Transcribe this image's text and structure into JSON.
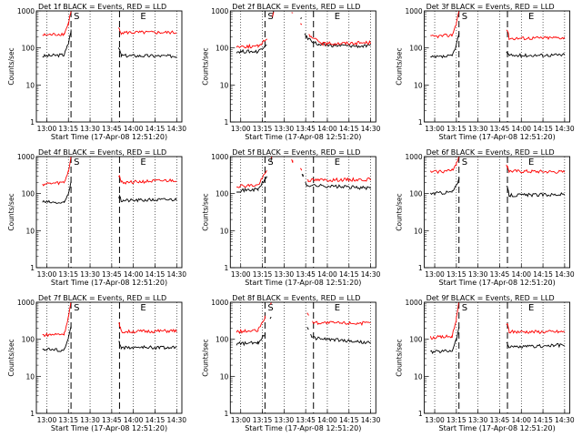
{
  "figure": {
    "ylabel": "Counts/sec",
    "xlabel": "Start Time (17-Apr-08 12:51:20)",
    "start_marker": "S",
    "end_marker": "E"
  },
  "colors": {
    "events": "#000000",
    "lld": "#ff0000"
  },
  "chart_data": [
    {
      "type": "line",
      "title": "Det 1f BLACK = Events, RED = LLD",
      "x_ticks": [
        "13:00",
        "13:15",
        "13:30",
        "13:45",
        "14:00",
        "14:15",
        "14:30"
      ],
      "y_scale": "log",
      "y_ticks": [
        "1",
        "10",
        "100",
        "1000"
      ],
      "ylim": [
        1,
        1000
      ],
      "series": [
        {
          "color": "#000000",
          "points": [
            [
              12.95,
              60
            ],
            [
              13.2,
              65
            ],
            [
              13.25,
              130
            ],
            [
              13.28,
              300
            ],
            [
              13.84,
              90
            ],
            [
              13.86,
              62
            ],
            [
              14.5,
              60
            ]
          ]
        },
        {
          "color": "#ff0000",
          "points": [
            [
              12.95,
              220
            ],
            [
              13.2,
              240
            ],
            [
              13.25,
              450
            ],
            [
              13.28,
              1000
            ],
            [
              13.84,
              320
            ],
            [
              13.86,
              260
            ],
            [
              14.5,
              260
            ]
          ]
        }
      ]
    },
    {
      "type": "line",
      "title": "Det 2f BLACK = Events, RED = LLD",
      "x_ticks": [
        "13:00",
        "13:15",
        "13:30",
        "13:45",
        "14:00",
        "14:15",
        "14:30"
      ],
      "y_scale": "log",
      "y_ticks": [
        "1",
        "10",
        "100",
        "1000"
      ],
      "ylim": [
        1,
        1000
      ],
      "series": [
        {
          "color": "#000000",
          "points": [
            [
              12.95,
              80
            ],
            [
              13.2,
              80
            ],
            [
              13.3,
              130
            ],
            [
              13.38,
              1000
            ],
            [
              13.7,
              600
            ],
            [
              13.75,
              200
            ],
            [
              13.9,
              120
            ],
            [
              14.5,
              110
            ]
          ]
        },
        {
          "color": "#ff0000",
          "points": [
            [
              12.95,
              110
            ],
            [
              13.2,
              110
            ],
            [
              13.3,
              180
            ],
            [
              13.38,
              1000
            ],
            [
              13.6,
              900
            ],
            [
              13.7,
              450
            ],
            [
              13.8,
              200
            ],
            [
              13.95,
              130
            ],
            [
              14.5,
              140
            ]
          ]
        }
      ]
    },
    {
      "type": "line",
      "title": "Det 3f BLACK = Events, RED = LLD",
      "x_ticks": [
        "13:00",
        "13:15",
        "13:30",
        "13:45",
        "14:00",
        "14:15",
        "14:30"
      ],
      "y_scale": "log",
      "y_ticks": [
        "1",
        "10",
        "100",
        "1000"
      ],
      "ylim": [
        1,
        1000
      ],
      "series": [
        {
          "color": "#000000",
          "points": [
            [
              12.95,
              55
            ],
            [
              13.2,
              60
            ],
            [
              13.25,
              120
            ],
            [
              13.28,
              250
            ],
            [
              13.84,
              75
            ],
            [
              13.86,
              62
            ],
            [
              14.5,
              65
            ]
          ]
        },
        {
          "color": "#ff0000",
          "points": [
            [
              12.95,
              200
            ],
            [
              13.2,
              220
            ],
            [
              13.25,
              450
            ],
            [
              13.28,
              1000
            ],
            [
              13.84,
              300
            ],
            [
              13.86,
              180
            ],
            [
              14.5,
              190
            ]
          ]
        }
      ]
    },
    {
      "type": "line",
      "title": "Det 4f BLACK = Events, RED = LLD",
      "x_ticks": [
        "13:00",
        "13:15",
        "13:30",
        "13:45",
        "14:00",
        "14:15",
        "14:30"
      ],
      "y_scale": "log",
      "y_ticks": [
        "1",
        "10",
        "100",
        "1000"
      ],
      "ylim": [
        1,
        1000
      ],
      "series": [
        {
          "color": "#000000",
          "points": [
            [
              12.95,
              60
            ],
            [
              13.2,
              55
            ],
            [
              13.25,
              100
            ],
            [
              13.28,
              220
            ],
            [
              13.84,
              80
            ],
            [
              13.86,
              65
            ],
            [
              14.5,
              70
            ]
          ]
        },
        {
          "color": "#ff0000",
          "points": [
            [
              12.95,
              180
            ],
            [
              13.2,
              200
            ],
            [
              13.25,
              400
            ],
            [
              13.28,
              1000
            ],
            [
              13.84,
              300
            ],
            [
              13.86,
              200
            ],
            [
              14.5,
              230
            ]
          ]
        }
      ]
    },
    {
      "type": "line",
      "title": "Det 5f BLACK = Events, RED = LLD",
      "x_ticks": [
        "13:00",
        "13:15",
        "13:30",
        "13:45",
        "14:00",
        "14:15",
        "14:30"
      ],
      "y_scale": "log",
      "y_ticks": [
        "1",
        "10",
        "100",
        "1000"
      ],
      "ylim": [
        1,
        1000
      ],
      "series": [
        {
          "color": "#000000",
          "points": [
            [
              12.95,
              120
            ],
            [
              13.2,
              130
            ],
            [
              13.3,
              280
            ],
            [
              13.36,
              1000
            ],
            [
              13.72,
              300
            ],
            [
              13.76,
              170
            ],
            [
              14.5,
              140
            ]
          ]
        },
        {
          "color": "#ff0000",
          "points": [
            [
              12.95,
              160
            ],
            [
              13.2,
              170
            ],
            [
              13.3,
              400
            ],
            [
              13.36,
              1000
            ],
            [
              13.6,
              750
            ],
            [
              13.7,
              450
            ],
            [
              13.78,
              230
            ],
            [
              14.5,
              240
            ]
          ]
        }
      ]
    },
    {
      "type": "line",
      "title": "Det 6f BLACK = Events, RED = LLD",
      "x_ticks": [
        "13:00",
        "13:15",
        "13:30",
        "13:45",
        "14:00",
        "14:15",
        "14:30"
      ],
      "y_scale": "log",
      "y_ticks": [
        "1",
        "10",
        "100",
        "1000"
      ],
      "ylim": [
        1,
        1000
      ],
      "series": [
        {
          "color": "#000000",
          "points": [
            [
              12.95,
              100
            ],
            [
              13.2,
              110
            ],
            [
              13.25,
              160
            ],
            [
              13.28,
              260
            ],
            [
              13.84,
              140
            ],
            [
              13.86,
              90
            ],
            [
              14.5,
              95
            ]
          ]
        },
        {
          "color": "#ff0000",
          "points": [
            [
              12.95,
              380
            ],
            [
              13.2,
              420
            ],
            [
              13.25,
              650
            ],
            [
              13.28,
              1000
            ],
            [
              13.84,
              550
            ],
            [
              13.86,
              400
            ],
            [
              14.5,
              380
            ]
          ]
        }
      ]
    },
    {
      "type": "line",
      "title": "Det 7f BLACK = Events, RED = LLD",
      "x_ticks": [
        "13:00",
        "13:15",
        "13:30",
        "13:45",
        "14:00",
        "14:15",
        "14:30"
      ],
      "y_scale": "log",
      "y_ticks": [
        "1",
        "10",
        "100",
        "1000"
      ],
      "ylim": [
        1,
        1000
      ],
      "series": [
        {
          "color": "#000000",
          "points": [
            [
              12.95,
              55
            ],
            [
              13.2,
              50
            ],
            [
              13.25,
              110
            ],
            [
              13.28,
              220
            ],
            [
              13.84,
              80
            ],
            [
              13.86,
              60
            ],
            [
              14.5,
              60
            ]
          ]
        },
        {
          "color": "#ff0000",
          "points": [
            [
              12.95,
              130
            ],
            [
              13.2,
              140
            ],
            [
              13.25,
              400
            ],
            [
              13.28,
              1000
            ],
            [
              13.84,
              250
            ],
            [
              13.86,
              160
            ],
            [
              14.5,
              170
            ]
          ]
        }
      ]
    },
    {
      "type": "line",
      "title": "Det 8f BLACK = Events, RED = LLD",
      "x_ticks": [
        "13:00",
        "13:15",
        "13:30",
        "13:45",
        "14:00",
        "14:15",
        "14:30"
      ],
      "y_scale": "log",
      "y_ticks": [
        "1",
        "10",
        "100",
        "1000"
      ],
      "ylim": [
        1,
        1000
      ],
      "series": [
        {
          "color": "#000000",
          "points": [
            [
              12.95,
              75
            ],
            [
              13.2,
              80
            ],
            [
              13.28,
              140
            ],
            [
              13.35,
              420
            ],
            [
              13.78,
              200
            ],
            [
              13.82,
              110
            ],
            [
              14.5,
              80
            ]
          ]
        },
        {
          "color": "#ff0000",
          "points": [
            [
              12.95,
              160
            ],
            [
              13.2,
              170
            ],
            [
              13.28,
              400
            ],
            [
              13.35,
              1000
            ],
            [
              13.78,
              500
            ],
            [
              13.84,
              280
            ],
            [
              14.5,
              270
            ]
          ]
        }
      ]
    },
    {
      "type": "line",
      "title": "Det 9f BLACK = Events, RED = LLD",
      "x_ticks": [
        "13:00",
        "13:15",
        "13:30",
        "13:45",
        "14:00",
        "14:15",
        "14:30"
      ],
      "y_scale": "log",
      "y_ticks": [
        "1",
        "10",
        "100",
        "1000"
      ],
      "ylim": [
        1,
        1000
      ],
      "series": [
        {
          "color": "#000000",
          "points": [
            [
              12.95,
              45
            ],
            [
              13.2,
              50
            ],
            [
              13.25,
              100
            ],
            [
              13.28,
              200
            ],
            [
              13.84,
              80
            ],
            [
              13.86,
              60
            ],
            [
              14.5,
              70
            ]
          ]
        },
        {
          "color": "#ff0000",
          "points": [
            [
              12.95,
              110
            ],
            [
              13.2,
              120
            ],
            [
              13.25,
              350
            ],
            [
              13.28,
              1000
            ],
            [
              13.84,
              250
            ],
            [
              13.86,
              160
            ],
            [
              14.5,
              160
            ]
          ]
        }
      ]
    }
  ]
}
